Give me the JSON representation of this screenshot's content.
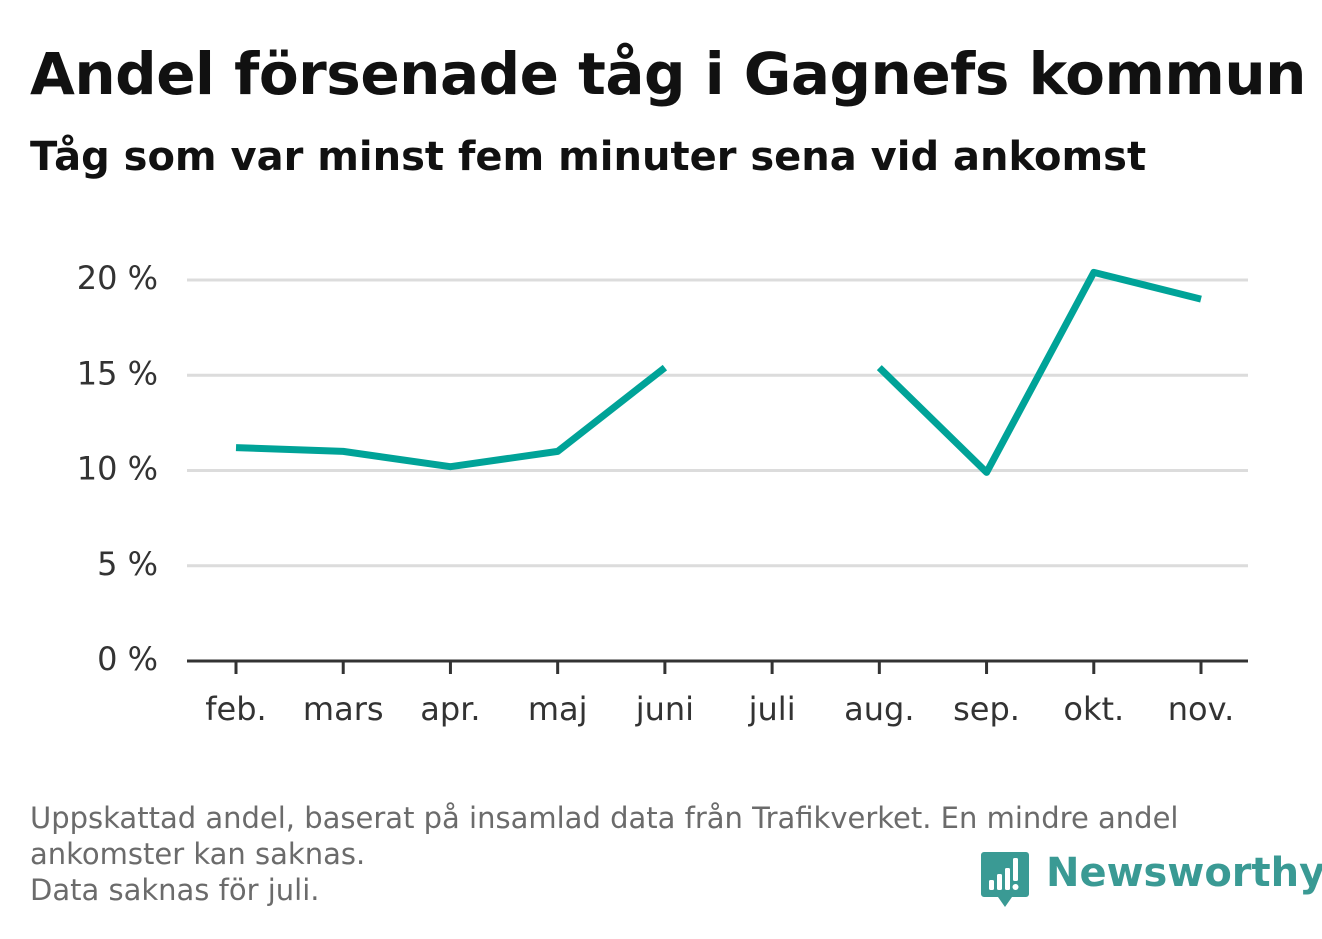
{
  "header": {
    "title": "Andel försenade tåg i Gagnefs kommun",
    "subtitle": "Tåg som var minst fem minuter sena vid ankomst"
  },
  "footer": {
    "note_line1": "Uppskattad andel, baserat på insamlad data från Trafikverket. En mindre andel",
    "note_line2": "ankomster kan saknas.",
    "note_line3": "Data saknas för juli.",
    "brand": "Newsworthy",
    "brand_color": "#3a9a94",
    "brand_icon": "newsworthy-logo-icon"
  },
  "chart_data": {
    "type": "line",
    "title": "Andel försenade tåg i Gagnefs kommun",
    "subtitle": "Tåg som var minst fem minuter sena vid ankomst",
    "xlabel": "",
    "ylabel": "",
    "categories": [
      "feb.",
      "mars",
      "apr.",
      "maj",
      "juni",
      "juli",
      "aug.",
      "sep.",
      "okt.",
      "nov."
    ],
    "series": [
      {
        "values": [
          11.2,
          11.0,
          10.2,
          11.0,
          15.4,
          null,
          15.4,
          9.9,
          20.4,
          19.0
        ],
        "color": "#00a398"
      }
    ],
    "ylim": [
      0,
      20
    ],
    "yticks": [
      0,
      5,
      10,
      15,
      20
    ],
    "ytick_labels": [
      "0 %",
      "5 %",
      "10 %",
      "15 %",
      "20 %"
    ],
    "grid": true,
    "legend": "none"
  }
}
